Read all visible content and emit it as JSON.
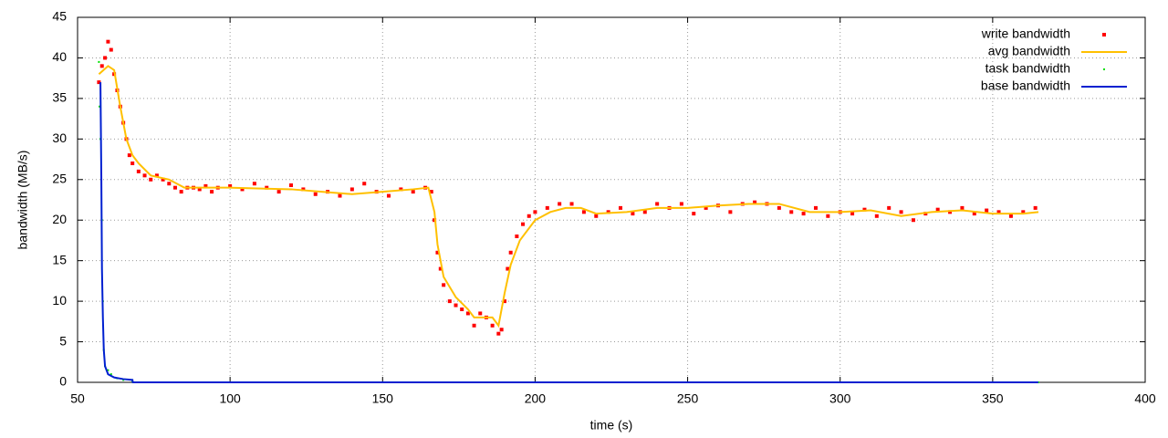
{
  "chart_data": {
    "type": "line",
    "xlabel": "time (s)",
    "ylabel": "bandwidth (MB/s)",
    "xlim": [
      50,
      400
    ],
    "xticks": [
      50,
      100,
      150,
      200,
      250,
      300,
      350,
      400
    ],
    "ylim": [
      0,
      45
    ],
    "yticks": [
      0,
      5,
      10,
      15,
      20,
      25,
      30,
      35,
      40,
      45
    ],
    "grid": true,
    "legend": "top-right",
    "series": [
      {
        "name": "write bandwidth",
        "color": "#ff0000",
        "style": "points",
        "point_size": 4,
        "x": [
          57,
          58,
          59,
          60,
          61,
          62,
          63,
          64,
          65,
          66,
          67,
          68,
          70,
          72,
          74,
          76,
          78,
          80,
          82,
          84,
          86,
          88,
          90,
          92,
          94,
          96,
          100,
          104,
          108,
          112,
          116,
          120,
          124,
          128,
          132,
          136,
          140,
          144,
          148,
          152,
          156,
          160,
          164,
          166,
          167,
          168,
          169,
          170,
          172,
          174,
          176,
          178,
          180,
          182,
          184,
          186,
          188,
          189,
          190,
          191,
          192,
          194,
          196,
          198,
          200,
          204,
          208,
          212,
          216,
          220,
          224,
          228,
          232,
          236,
          240,
          244,
          248,
          252,
          256,
          260,
          264,
          268,
          272,
          276,
          280,
          284,
          288,
          292,
          296,
          300,
          304,
          308,
          312,
          316,
          320,
          324,
          328,
          332,
          336,
          340,
          344,
          348,
          352,
          356,
          360,
          364
        ],
        "values": [
          37,
          39,
          40,
          42,
          41,
          38,
          36,
          34,
          32,
          30,
          28,
          27,
          26,
          25.5,
          25,
          25.5,
          25,
          24.5,
          24,
          23.5,
          24,
          24,
          23.8,
          24.2,
          23.5,
          24,
          24.2,
          23.8,
          24.5,
          24,
          23.5,
          24.3,
          23.8,
          23.2,
          23.5,
          23,
          23.8,
          24.5,
          23.5,
          23,
          23.8,
          23.5,
          24,
          23.5,
          20,
          16,
          14,
          12,
          10,
          9.5,
          9,
          8.5,
          7,
          8.5,
          8,
          7,
          6,
          6.5,
          10,
          14,
          16,
          18,
          19.5,
          20.5,
          21,
          21.5,
          22,
          22,
          21,
          20.5,
          21,
          21.5,
          20.8,
          21,
          22,
          21.5,
          22,
          20.8,
          21.5,
          21.8,
          21,
          22,
          22.2,
          22,
          21.5,
          21,
          20.8,
          21.5,
          20.5,
          21,
          20.8,
          21.3,
          20.5,
          21.5,
          21,
          20,
          20.8,
          21.3,
          21,
          21.5,
          20.8,
          21.2,
          21,
          20.5,
          21,
          21.5
        ]
      },
      {
        "name": "avg bandwidth",
        "color": "#ffc000",
        "style": "lines",
        "x": [
          57,
          60,
          62,
          64,
          66,
          68,
          70,
          74,
          80,
          85,
          100,
          120,
          130,
          140,
          150,
          160,
          165,
          167,
          168,
          170,
          174,
          178,
          180,
          186,
          188,
          190,
          192,
          195,
          200,
          205,
          210,
          215,
          220,
          230,
          240,
          250,
          260,
          270,
          280,
          290,
          300,
          310,
          320,
          330,
          340,
          350,
          360,
          365
        ],
        "values": [
          38,
          39,
          38.5,
          34,
          30,
          28,
          27,
          25.5,
          25,
          24,
          24,
          23.8,
          23.5,
          23.2,
          23.5,
          23.8,
          24,
          21,
          17,
          13,
          10.5,
          9,
          8,
          8,
          7,
          11,
          14.5,
          17.5,
          20,
          21,
          21.5,
          21.5,
          20.8,
          21,
          21.5,
          21.5,
          21.8,
          22,
          22,
          21,
          21,
          21.2,
          20.5,
          21,
          21.2,
          20.8,
          20.8,
          21
        ]
      },
      {
        "name": "task bandwidth",
        "color": "#00e000",
        "style": "points",
        "point_size": 2,
        "x": [
          57,
          57.2,
          57.5,
          58,
          58.3,
          58.6,
          59,
          60,
          61,
          63,
          65,
          68,
          100,
          150,
          200,
          250,
          300,
          365
        ],
        "values": [
          39.5,
          34,
          30,
          20,
          10,
          4,
          2,
          1.5,
          1,
          0.5,
          0.3,
          0.1,
          0,
          0,
          0,
          0,
          0,
          0
        ]
      },
      {
        "name": "base bandwidth",
        "color": "#0020d0",
        "style": "lines",
        "x": [
          57.5,
          57.8,
          58,
          58.3,
          58.6,
          59,
          60,
          62,
          65,
          68,
          68.1,
          100,
          200,
          365
        ],
        "values": [
          37,
          25,
          14,
          8,
          4,
          2,
          1,
          0.6,
          0.4,
          0.3,
          0,
          0,
          0,
          0
        ]
      }
    ]
  }
}
